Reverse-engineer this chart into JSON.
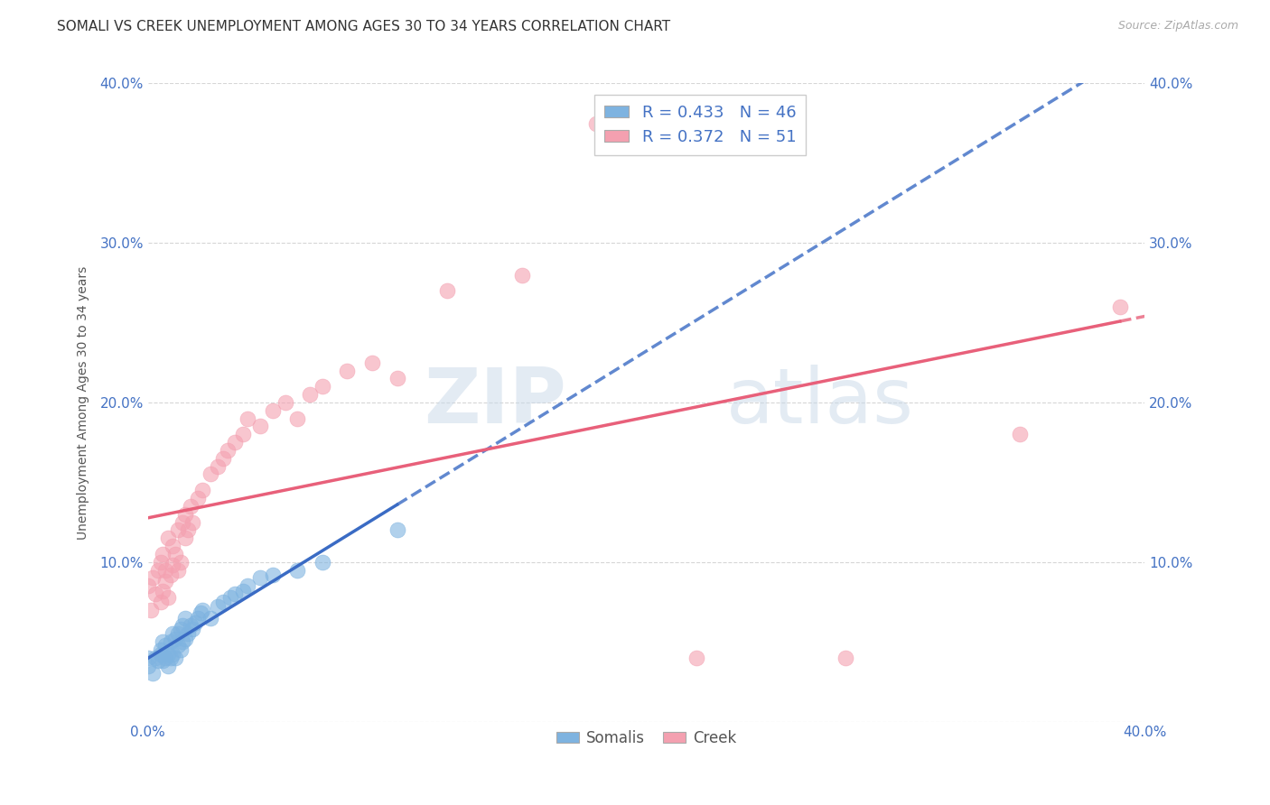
{
  "title": "SOMALI VS CREEK UNEMPLOYMENT AMONG AGES 30 TO 34 YEARS CORRELATION CHART",
  "source": "Source: ZipAtlas.com",
  "ylabel": "Unemployment Among Ages 30 to 34 years",
  "xlim": [
    0.0,
    0.4
  ],
  "ylim": [
    0.0,
    0.4
  ],
  "xtick_labels": [
    "0.0%",
    "",
    "",
    "",
    "40.0%"
  ],
  "xtick_vals": [
    0.0,
    0.1,
    0.2,
    0.3,
    0.4
  ],
  "left_ytick_labels": [
    "",
    "10.0%",
    "20.0%",
    "30.0%",
    "40.0%"
  ],
  "left_ytick_vals": [
    0.0,
    0.1,
    0.2,
    0.3,
    0.4
  ],
  "right_ytick_labels": [
    "",
    "10.0%",
    "20.0%",
    "30.0%",
    "40.0%"
  ],
  "right_ytick_vals": [
    0.0,
    0.1,
    0.2,
    0.3,
    0.4
  ],
  "somali_R": 0.433,
  "somali_N": 46,
  "creek_R": 0.372,
  "creek_N": 51,
  "somali_color": "#7eb3e0",
  "creek_color": "#f4a0b0",
  "somali_line_color": "#3a6bc4",
  "creek_line_color": "#e8607a",
  "background_color": "#ffffff",
  "grid_color": "#cccccc",
  "title_fontsize": 11,
  "axis_label_fontsize": 10,
  "tick_label_color": "#4472c4",
  "somali_x": [
    0.0,
    0.0,
    0.002,
    0.003,
    0.004,
    0.005,
    0.005,
    0.006,
    0.006,
    0.007,
    0.007,
    0.008,
    0.008,
    0.009,
    0.009,
    0.01,
    0.01,
    0.011,
    0.011,
    0.012,
    0.012,
    0.013,
    0.013,
    0.014,
    0.014,
    0.015,
    0.015,
    0.016,
    0.017,
    0.018,
    0.019,
    0.02,
    0.021,
    0.022,
    0.025,
    0.028,
    0.03,
    0.033,
    0.035,
    0.038,
    0.04,
    0.045,
    0.05,
    0.06,
    0.07,
    0.1
  ],
  "somali_y": [
    0.035,
    0.04,
    0.03,
    0.04,
    0.038,
    0.042,
    0.045,
    0.038,
    0.05,
    0.04,
    0.048,
    0.035,
    0.042,
    0.04,
    0.05,
    0.042,
    0.055,
    0.04,
    0.052,
    0.048,
    0.055,
    0.045,
    0.058,
    0.05,
    0.06,
    0.052,
    0.065,
    0.055,
    0.06,
    0.058,
    0.062,
    0.065,
    0.068,
    0.07,
    0.065,
    0.072,
    0.075,
    0.078,
    0.08,
    0.082,
    0.085,
    0.09,
    0.092,
    0.095,
    0.1,
    0.12
  ],
  "creek_x": [
    0.0,
    0.001,
    0.002,
    0.003,
    0.004,
    0.005,
    0.005,
    0.006,
    0.006,
    0.007,
    0.007,
    0.008,
    0.008,
    0.009,
    0.01,
    0.01,
    0.011,
    0.012,
    0.012,
    0.013,
    0.014,
    0.015,
    0.015,
    0.016,
    0.017,
    0.018,
    0.02,
    0.022,
    0.025,
    0.028,
    0.03,
    0.032,
    0.035,
    0.038,
    0.04,
    0.045,
    0.05,
    0.055,
    0.06,
    0.065,
    0.07,
    0.08,
    0.09,
    0.1,
    0.12,
    0.15,
    0.18,
    0.22,
    0.28,
    0.35,
    0.39
  ],
  "creek_y": [
    0.085,
    0.07,
    0.09,
    0.08,
    0.095,
    0.075,
    0.1,
    0.082,
    0.105,
    0.088,
    0.095,
    0.078,
    0.115,
    0.092,
    0.098,
    0.11,
    0.105,
    0.095,
    0.12,
    0.1,
    0.125,
    0.115,
    0.13,
    0.12,
    0.135,
    0.125,
    0.14,
    0.145,
    0.155,
    0.16,
    0.165,
    0.17,
    0.175,
    0.18,
    0.19,
    0.185,
    0.195,
    0.2,
    0.19,
    0.205,
    0.21,
    0.22,
    0.225,
    0.215,
    0.27,
    0.28,
    0.375,
    0.04,
    0.04,
    0.18,
    0.26
  ],
  "watermark_text": "ZIPatlas"
}
